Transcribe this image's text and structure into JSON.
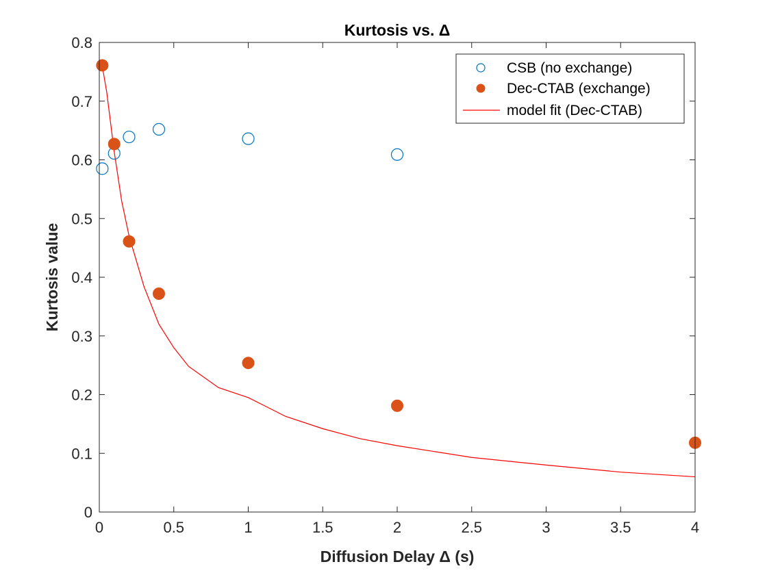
{
  "chart_data": {
    "type": "scatter",
    "title": "Kurtosis vs. Δ",
    "xlabel": "Diffusion Delay Δ (s)",
    "ylabel": "Kurtosis value",
    "xlim": [
      0,
      4
    ],
    "ylim": [
      0,
      0.8
    ],
    "xticks": [
      0,
      0.5,
      1,
      1.5,
      2,
      2.5,
      3,
      3.5,
      4
    ],
    "xtick_labels": [
      "0",
      "0.5",
      "1",
      "1.5",
      "2",
      "2.5",
      "3",
      "3.5",
      "4"
    ],
    "yticks": [
      0,
      0.1,
      0.2,
      0.3,
      0.4,
      0.5,
      0.6,
      0.7,
      0.8
    ],
    "ytick_labels": [
      "0",
      "0.1",
      "0.2",
      "0.3",
      "0.4",
      "0.5",
      "0.6",
      "0.7",
      "0.8"
    ],
    "grid": false,
    "legend_position": "top-right",
    "series": [
      {
        "name": "CSB (no exchange)",
        "kind": "scatter",
        "marker": "open-circle",
        "color": "#0072BD",
        "x": [
          0.02,
          0.1,
          0.2,
          0.4,
          1.0,
          2.0
        ],
        "y": [
          0.585,
          0.611,
          0.639,
          0.652,
          0.636,
          0.609
        ]
      },
      {
        "name": "Dec-CTAB (exchange)",
        "kind": "scatter",
        "marker": "filled-circle",
        "color": "#D95319",
        "x": [
          0.02,
          0.1,
          0.2,
          0.4,
          1.0,
          2.0,
          4.0
        ],
        "y": [
          0.761,
          0.627,
          0.461,
          0.372,
          0.254,
          0.181,
          0.118
        ]
      },
      {
        "name": "model fit (Dec-CTAB)",
        "kind": "line",
        "color": "#FF0000",
        "x": [
          0.02,
          0.05,
          0.1,
          0.15,
          0.2,
          0.3,
          0.4,
          0.5,
          0.6,
          0.8,
          1.0,
          1.25,
          1.5,
          1.75,
          2.0,
          2.5,
          3.0,
          3.5,
          4.0
        ],
        "y": [
          0.76,
          0.715,
          0.614,
          0.53,
          0.47,
          0.384,
          0.32,
          0.28,
          0.248,
          0.212,
          0.195,
          0.163,
          0.142,
          0.125,
          0.113,
          0.093,
          0.08,
          0.068,
          0.06
        ]
      }
    ]
  }
}
